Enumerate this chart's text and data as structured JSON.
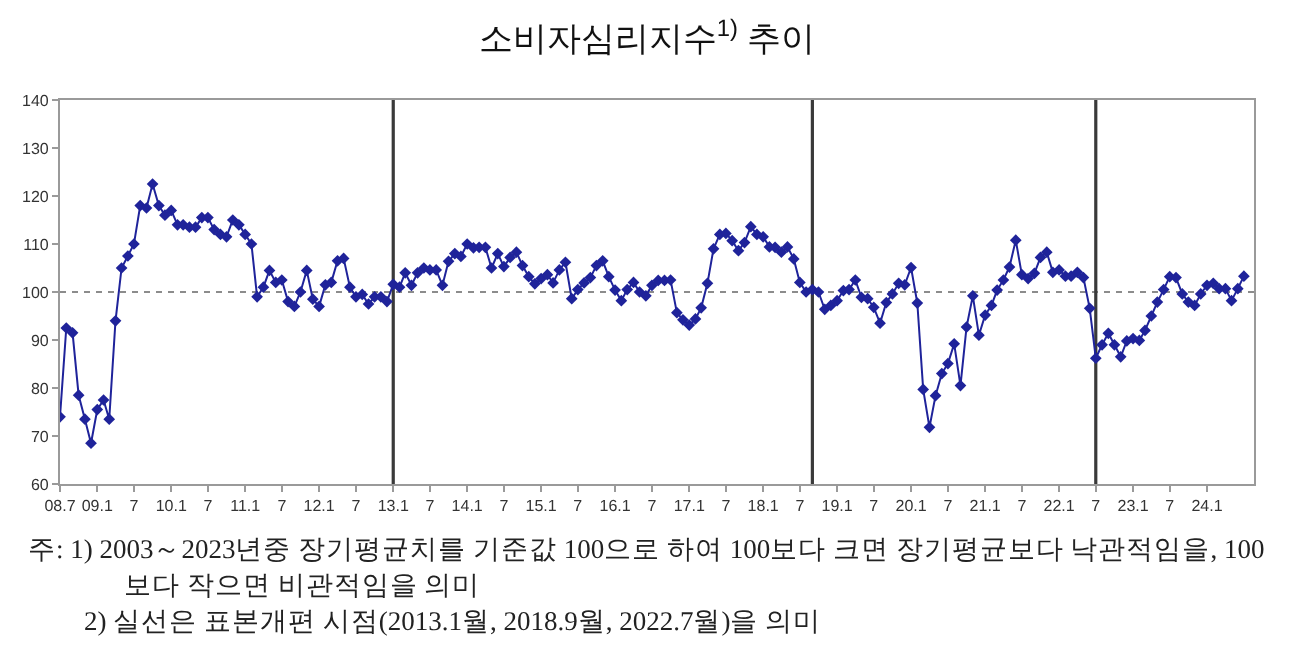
{
  "chart_data": {
    "type": "line",
    "title": "소비자심리지수$^{1)}$ 추이",
    "x": [
      "2008-07",
      "2008-08",
      "2008-09",
      "2008-10",
      "2008-11",
      "2008-12",
      "2009-01",
      "2009-02",
      "2009-03",
      "2009-04",
      "2009-05",
      "2009-06",
      "2009-07",
      "2009-08",
      "2009-09",
      "2009-10",
      "2009-11",
      "2009-12",
      "2010-01",
      "2010-02",
      "2010-03",
      "2010-04",
      "2010-05",
      "2010-06",
      "2010-07",
      "2010-08",
      "2010-09",
      "2010-10",
      "2010-11",
      "2010-12",
      "2011-01",
      "2011-02",
      "2011-03",
      "2011-04",
      "2011-05",
      "2011-06",
      "2011-07",
      "2011-08",
      "2011-09",
      "2011-10",
      "2011-11",
      "2011-12",
      "2012-01",
      "2012-02",
      "2012-03",
      "2012-04",
      "2012-05",
      "2012-06",
      "2012-07",
      "2012-08",
      "2012-09",
      "2012-10",
      "2012-11",
      "2012-12",
      "2013-01",
      "2013-02",
      "2013-03",
      "2013-04",
      "2013-05",
      "2013-06",
      "2013-07",
      "2013-08",
      "2013-09",
      "2013-10",
      "2013-11",
      "2013-12",
      "2014-01",
      "2014-02",
      "2014-03",
      "2014-04",
      "2014-05",
      "2014-06",
      "2014-07",
      "2014-08",
      "2014-09",
      "2014-10",
      "2014-11",
      "2014-12",
      "2015-01",
      "2015-02",
      "2015-03",
      "2015-04",
      "2015-05",
      "2015-06",
      "2015-07",
      "2015-08",
      "2015-09",
      "2015-10",
      "2015-11",
      "2015-12",
      "2016-01",
      "2016-02",
      "2016-03",
      "2016-04",
      "2016-05",
      "2016-06",
      "2016-07",
      "2016-08",
      "2016-09",
      "2016-10",
      "2016-11",
      "2016-12",
      "2017-01",
      "2017-02",
      "2017-03",
      "2017-04",
      "2017-05",
      "2017-06",
      "2017-07",
      "2017-08",
      "2017-09",
      "2017-10",
      "2017-11",
      "2017-12",
      "2018-01",
      "2018-02",
      "2018-03",
      "2018-04",
      "2018-05",
      "2018-06",
      "2018-07",
      "2018-08",
      "2018-09",
      "2018-10",
      "2018-11",
      "2018-12",
      "2019-01",
      "2019-02",
      "2019-03",
      "2019-04",
      "2019-05",
      "2019-06",
      "2019-07",
      "2019-08",
      "2019-09",
      "2019-10",
      "2019-11",
      "2019-12",
      "2020-01",
      "2020-02",
      "2020-03",
      "2020-04",
      "2020-05",
      "2020-06",
      "2020-07",
      "2020-08",
      "2020-09",
      "2020-10",
      "2020-11",
      "2020-12",
      "2021-01",
      "2021-02",
      "2021-03",
      "2021-04",
      "2021-05",
      "2021-06",
      "2021-07",
      "2021-08",
      "2021-09",
      "2021-10",
      "2021-11",
      "2021-12",
      "2022-01",
      "2022-02",
      "2022-03",
      "2022-04",
      "2022-05",
      "2022-06",
      "2022-07",
      "2022-08",
      "2022-09",
      "2022-10",
      "2022-11",
      "2022-12",
      "2023-01",
      "2023-02",
      "2023-03",
      "2023-04",
      "2023-05",
      "2023-06",
      "2023-07",
      "2023-08",
      "2023-09",
      "2023-10",
      "2023-11",
      "2023-12",
      "2024-01",
      "2024-02",
      "2024-03",
      "2024-04",
      "2024-05",
      "2024-06",
      "2024-07"
    ],
    "series": [
      {
        "color": "#1f239a",
        "values": [
          74,
          92.5,
          91.5,
          78.5,
          73.5,
          68.5,
          75.5,
          77.5,
          73.5,
          94,
          105,
          107.5,
          110,
          118,
          117.5,
          122.5,
          118,
          116,
          117,
          114,
          114,
          113.5,
          113.5,
          115.5,
          115.5,
          113,
          112,
          111.5,
          115,
          114,
          112,
          110,
          99,
          101,
          104.5,
          102,
          102.5,
          98,
          97,
          100,
          104.5,
          98.5,
          97,
          101.5,
          102,
          106.5,
          107,
          101,
          99,
          99.5,
          97.5,
          99,
          99,
          98,
          101.6,
          101,
          104,
          101.4,
          104,
          105,
          104.6,
          104.6,
          101.4,
          106.4,
          108,
          107.4,
          110,
          109.2,
          109.3,
          109.3,
          105,
          108,
          105.3,
          107.2,
          108.3,
          105.5,
          103.2,
          101.7,
          102.8,
          103.6,
          101.9,
          104.6,
          106.2,
          98.6,
          100.5,
          101.9,
          103,
          105.5,
          106.5,
          103.2,
          100.4,
          98.2,
          100.5,
          102,
          100,
          99.2,
          101.4,
          102.4,
          102.4,
          102.5,
          95.7,
          94.2,
          93.1,
          94.4,
          96.7,
          101.8,
          109,
          112,
          112.2,
          110.7,
          108.6,
          110.3,
          113.6,
          112,
          111.5,
          109.4,
          109.3,
          108.3,
          109.4,
          106.9,
          102,
          100,
          100.5,
          100,
          96.4,
          97.2,
          98.2,
          100.3,
          100.5,
          102.5,
          98.9,
          98.6,
          96.8,
          93.5,
          97.8,
          99.6,
          101.8,
          101.5,
          105.1,
          97.7,
          79.7,
          71.8,
          78.4,
          83,
          85.1,
          89.2,
          80.5,
          92.7,
          99.2,
          91,
          95.2,
          97.2,
          100.4,
          102.5,
          105.2,
          110.8,
          103.6,
          102.8,
          103.9,
          107.2,
          108.3,
          104.1,
          104.6,
          103.3,
          103.3,
          104.1,
          103,
          96.6,
          86.2,
          89,
          91.4,
          89,
          86.5,
          89.8,
          90.3,
          89.9,
          92,
          95,
          97.9,
          100.5,
          103.2,
          103,
          99.6,
          97.9,
          97.2,
          99.6,
          101.4,
          101.8,
          100.7,
          100.7,
          98.2,
          100.7,
          103.3
        ]
      }
    ],
    "xlim": [
      "2008-07",
      "2024-08-20"
    ],
    "xticks": [
      {
        "value": "2008-07",
        "label": "08.7"
      },
      {
        "value": "2009-01",
        "label": "09.1"
      },
      {
        "value": "2009-07",
        "label": "7"
      },
      {
        "value": "2010-01",
        "label": "10.1"
      },
      {
        "value": "2010-07",
        "label": "7"
      },
      {
        "value": "2011-01",
        "label": "11.1"
      },
      {
        "value": "2011-07",
        "label": "7"
      },
      {
        "value": "2012-01",
        "label": "12.1"
      },
      {
        "value": "2012-07",
        "label": "7"
      },
      {
        "value": "2013-01",
        "label": "13.1"
      },
      {
        "value": "2013-07",
        "label": "7"
      },
      {
        "value": "2014-01",
        "label": "14.1"
      },
      {
        "value": "2014-07",
        "label": "7"
      },
      {
        "value": "2015-01",
        "label": "15.1"
      },
      {
        "value": "2015-07",
        "label": "7"
      },
      {
        "value": "2016-01",
        "label": "16.1"
      },
      {
        "value": "2016-07",
        "label": "7"
      },
      {
        "value": "2017-01",
        "label": "17.1"
      },
      {
        "value": "2017-07",
        "label": "7"
      },
      {
        "value": "2018-01",
        "label": "18.1"
      },
      {
        "value": "2018-07",
        "label": "7"
      },
      {
        "value": "2019-01",
        "label": "19.1"
      },
      {
        "value": "2019-07",
        "label": "7"
      },
      {
        "value": "2020-01",
        "label": "20.1"
      },
      {
        "value": "2020-07",
        "label": "7"
      },
      {
        "value": "2021-01",
        "label": "21.1"
      },
      {
        "value": "2021-07",
        "label": "7"
      },
      {
        "value": "2022-01",
        "label": "22.1"
      },
      {
        "value": "2022-07",
        "label": "7"
      },
      {
        "value": "2023-01",
        "label": "23.1"
      },
      {
        "value": "2023-07",
        "label": "7"
      },
      {
        "value": "2024-01",
        "label": "24.1"
      }
    ],
    "ylim": [
      60,
      140
    ],
    "yticks": [
      60,
      70,
      80,
      90,
      100,
      110,
      120,
      130,
      140
    ],
    "grid": false,
    "marker": "diamond",
    "line_style": "solid",
    "ref_lines": [
      {
        "axis": "y",
        "value": 100,
        "color": "#8c8c8c",
        "line_style": "dotted"
      },
      {
        "axis": "x",
        "value": "2013-01",
        "color": "#3a3a3a",
        "line_style": "solid"
      },
      {
        "axis": "x",
        "value": "2018-09",
        "color": "#3a3a3a",
        "line_style": "solid"
      },
      {
        "axis": "x",
        "value": "2022-07",
        "color": "#3a3a3a",
        "line_style": "solid"
      }
    ],
    "annotations": [
      "주: 1) 2003～2023년중 장기평균치를 기준값 100으로 하여 100보다 크면 장기평균보다 낙관적임을, 100보다 작으면 비관적임을 의미",
      "2) 실선은 표본개편 시점(2013.1월, 2018.9월, 2022.7월)을 의미"
    ]
  }
}
